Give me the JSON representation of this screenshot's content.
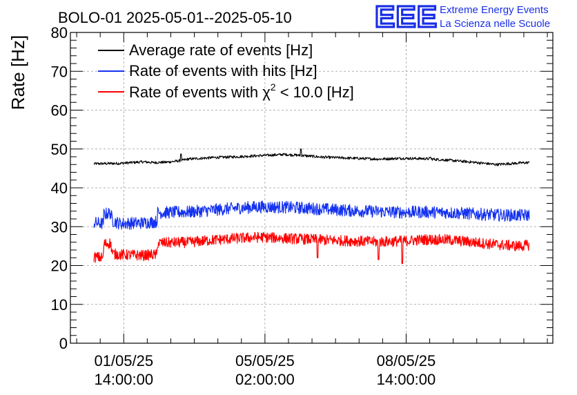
{
  "header": {
    "title": "BOLO-01 2025-05-01--2025-05-10",
    "logo_text": "EEE",
    "logo_line1": "Extreme Energy Events",
    "logo_line2": "La Scienza nelle Scuole",
    "logo_color": "#1a2fe6"
  },
  "chart_data": {
    "type": "line",
    "title": "BOLO-01 2025-05-01--2025-05-10",
    "xlabel": "",
    "ylabel": "Rate [Hz]",
    "ylim": [
      0,
      80
    ],
    "yticks": [
      0,
      10,
      20,
      30,
      40,
      50,
      60,
      70,
      80
    ],
    "grid": true,
    "legend_position": "top-left",
    "x_units": "days since 2025-05-01 00:00",
    "xlim": [
      -0.55,
      9.7
    ],
    "xticks": [
      {
        "x": 0.5833,
        "date": "01/05/25",
        "time": "14:00:00"
      },
      {
        "x": 3.5833,
        "date": "05/05/25",
        "time": "02:00:00"
      },
      {
        "x": 6.5833,
        "date": "08/05/25",
        "time": "14:00:00"
      }
    ],
    "series": [
      {
        "name": "Average rate of events [Hz]",
        "legend_html_suffix": "",
        "color": "#000000",
        "noise": 0.35,
        "x": [
          -0.05,
          0.5,
          1.0,
          1.2,
          1.5,
          1.8,
          1.95,
          2.5,
          3.0,
          3.5,
          4.0,
          4.4,
          4.8,
          5.5,
          6.0,
          6.5,
          7.0,
          7.5,
          8.0,
          8.5,
          9.0,
          9.2
        ],
        "y": [
          46.2,
          46.3,
          46.7,
          46.5,
          46.6,
          47.0,
          47.4,
          47.8,
          48.0,
          48.3,
          48.6,
          48.3,
          47.9,
          47.6,
          47.4,
          47.6,
          47.5,
          47.1,
          46.6,
          46.0,
          46.4,
          46.5
        ],
        "spikes": [
          {
            "x": 1.8,
            "y": 48.7
          },
          {
            "x": 4.35,
            "y": 50.0
          },
          {
            "x": 7.1,
            "y": 47.9
          }
        ]
      },
      {
        "name": "Rate of events with hits [Hz]",
        "legend_html_suffix": "",
        "color": "#1432f0",
        "noise": 1.6,
        "x": [
          -0.05,
          0.15,
          0.16,
          0.3,
          0.35,
          0.5,
          1.0,
          1.2,
          1.29,
          1.3,
          2.0,
          2.5,
          3.0,
          3.5,
          4.0,
          4.4,
          5.0,
          5.5,
          6.0,
          6.5,
          7.0,
          7.5,
          8.0,
          8.5,
          9.0,
          9.2
        ],
        "y": [
          31.0,
          30.8,
          33.2,
          33.5,
          31.5,
          30.8,
          31.0,
          31.2,
          31.3,
          33.6,
          33.8,
          34.3,
          34.8,
          35.1,
          35.0,
          34.8,
          34.4,
          34.1,
          33.9,
          33.7,
          33.8,
          33.6,
          33.3,
          33.0,
          32.9,
          33.0
        ],
        "spikes": []
      },
      {
        "name": "Rate of events with ",
        "legend_chi": "χ",
        "legend_sup": "2",
        "legend_rest": " < 10.0 [Hz]",
        "color": "#ff0000",
        "noise": 1.4,
        "x": [
          -0.05,
          0.15,
          0.16,
          0.3,
          0.35,
          0.5,
          1.0,
          1.2,
          1.29,
          1.3,
          2.0,
          2.5,
          3.0,
          3.5,
          4.0,
          4.4,
          5.0,
          5.5,
          6.0,
          6.5,
          7.0,
          7.5,
          8.0,
          8.5,
          9.0,
          9.2
        ],
        "y": [
          22.2,
          22.0,
          25.5,
          25.8,
          23.0,
          22.8,
          22.6,
          22.8,
          22.7,
          25.8,
          26.0,
          26.6,
          27.0,
          27.3,
          27.0,
          26.8,
          26.5,
          26.3,
          26.1,
          26.3,
          26.7,
          26.6,
          26.0,
          25.4,
          25.0,
          25.3
        ],
        "spikes": [
          {
            "x": 4.7,
            "y": 22.0
          },
          {
            "x": 6.0,
            "y": 21.5
          },
          {
            "x": 6.5,
            "y": 20.5
          }
        ]
      }
    ]
  }
}
